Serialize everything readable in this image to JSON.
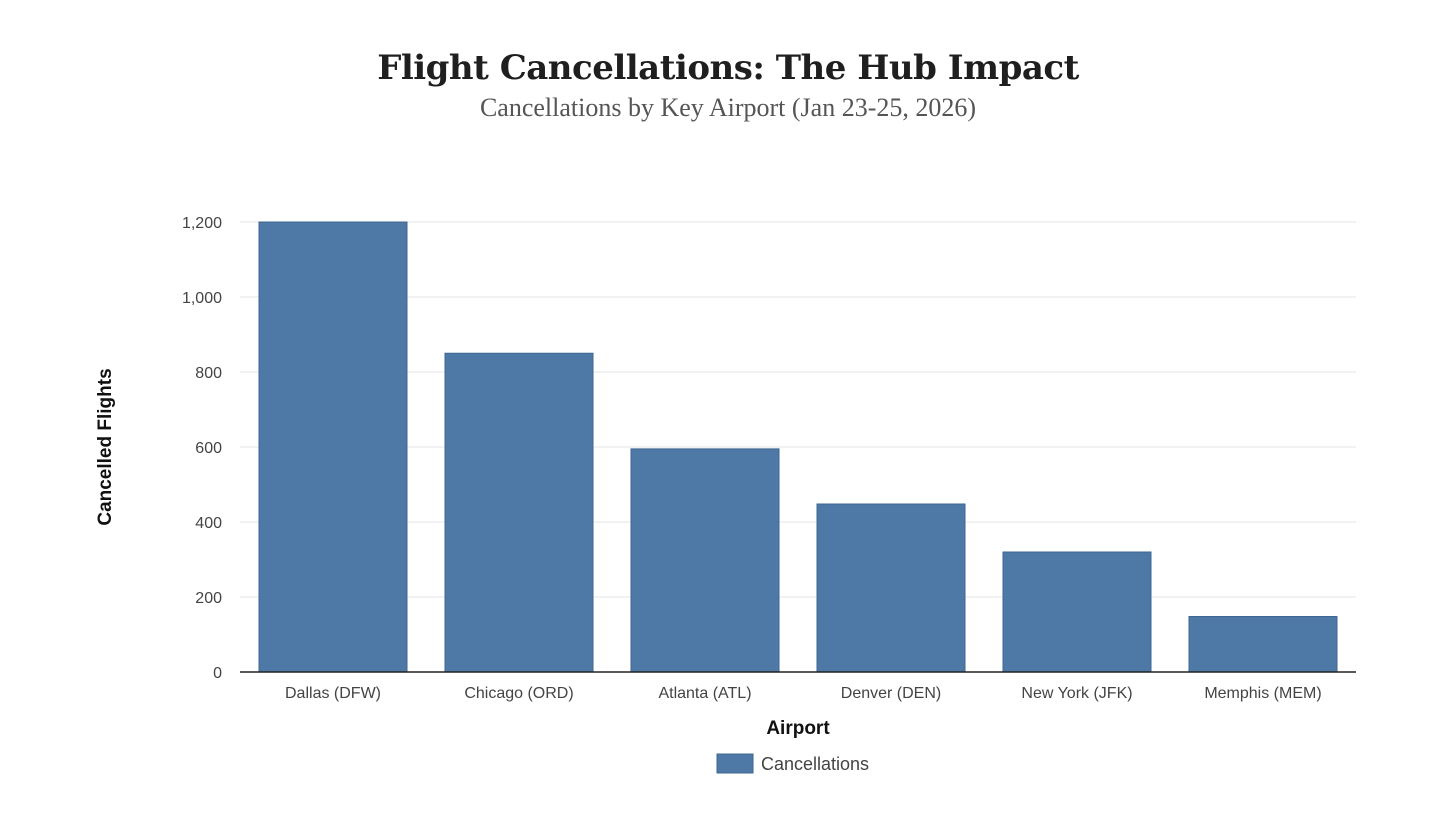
{
  "chart_data": {
    "type": "bar",
    "title": "Flight Cancellations: The Hub Impact",
    "subtitle": "Cancellations by Key Airport (Jan 23-25, 2026)",
    "xlabel": "Airport",
    "ylabel": "Cancelled Flights",
    "categories": [
      "Dallas (DFW)",
      "Chicago (ORD)",
      "Atlanta (ATL)",
      "Denver (DEN)",
      "New York (JFK)",
      "Memphis (MEM)"
    ],
    "series": [
      {
        "name": "Cancellations",
        "values": [
          1200,
          850,
          595,
          448,
          320,
          148
        ],
        "color": "#4e79a7"
      }
    ],
    "ylim": [
      0,
      1200
    ],
    "yticks": [
      0,
      200,
      400,
      600,
      800,
      1000,
      1200
    ],
    "ytick_labels": [
      "0",
      "200",
      "400",
      "600",
      "800",
      "1,000",
      "1,200"
    ],
    "grid": true,
    "legend_position": "bottom-center"
  }
}
